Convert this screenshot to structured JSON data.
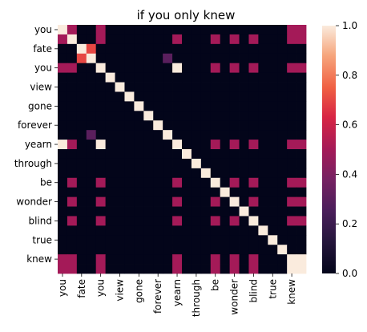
{
  "chart_data": {
    "type": "heatmap",
    "title": "if you only knew",
    "rows": [
      "you",
      "you",
      "fate",
      "fate",
      "you",
      "you",
      "view",
      "view",
      "gone",
      "gone",
      "forever",
      "forever",
      "yearn",
      "yearn",
      "through",
      "through",
      "be",
      "be",
      "wonder",
      "wonder",
      "blind",
      "blind",
      "true",
      "true",
      "knew",
      "knew"
    ],
    "columns": [
      "you",
      "you",
      "fate",
      "fate",
      "you",
      "you",
      "view",
      "view",
      "gone",
      "gone",
      "forever",
      "forever",
      "yearn",
      "yearn",
      "through",
      "through",
      "be",
      "be",
      "wonder",
      "wonder",
      "blind",
      "blind",
      "true",
      "true",
      "knew",
      "knew"
    ],
    "y_tick_labels": [
      "you",
      "fate",
      "you",
      "view",
      "gone",
      "forever",
      "yearn",
      "through",
      "be",
      "wonder",
      "blind",
      "true",
      "knew"
    ],
    "x_tick_labels": [
      "you",
      "fate",
      "you",
      "view",
      "gone",
      "forever",
      "yearn",
      "through",
      "be",
      "wonder",
      "blind",
      "true",
      "knew"
    ],
    "colorbar": {
      "vmin": 0.0,
      "vmax": 1.0,
      "ticks": [
        "0.0",
        "0.2",
        "0.4",
        "0.6",
        "0.8",
        "1.0"
      ]
    },
    "values": [
      [
        1,
        0.5,
        0,
        0,
        0.5,
        0,
        0,
        0,
        0,
        0,
        0,
        0,
        0,
        0,
        0,
        0,
        0,
        0,
        0,
        0,
        0,
        0,
        0,
        0,
        0.5,
        0.5
      ],
      [
        0.5,
        1,
        0,
        0,
        0.5,
        0,
        0,
        0,
        0,
        0,
        0,
        0,
        0.5,
        0,
        0,
        0,
        0.5,
        0,
        0.5,
        0,
        0.5,
        0,
        0,
        0,
        0.5,
        0.5
      ],
      [
        0,
        0,
        1,
        0.7,
        0,
        0,
        0,
        0,
        0,
        0,
        0,
        0,
        0,
        0,
        0,
        0,
        0,
        0,
        0,
        0,
        0,
        0,
        0,
        0,
        0,
        0
      ],
      [
        0,
        0,
        0.7,
        1,
        0,
        0,
        0,
        0,
        0,
        0,
        0,
        0.3,
        0,
        0,
        0,
        0,
        0,
        0,
        0,
        0,
        0,
        0,
        0,
        0,
        0,
        0
      ],
      [
        0.5,
        0.5,
        0,
        0,
        1,
        0,
        0,
        0,
        0,
        0,
        0,
        0,
        1,
        0,
        0,
        0,
        0.5,
        0,
        0.5,
        0,
        0.5,
        0,
        0,
        0,
        0.5,
        0.5
      ],
      [
        0,
        0,
        0,
        0,
        0,
        1,
        0,
        0,
        0,
        0,
        0,
        0,
        0,
        0,
        0,
        0,
        0,
        0,
        0,
        0,
        0,
        0,
        0,
        0,
        0,
        0
      ],
      [
        0,
        0,
        0,
        0,
        0,
        0,
        1,
        0,
        0,
        0,
        0,
        0,
        0,
        0,
        0,
        0,
        0,
        0,
        0,
        0,
        0,
        0,
        0,
        0,
        0,
        0
      ],
      [
        0,
        0,
        0,
        0,
        0,
        0,
        0,
        1,
        0,
        0,
        0,
        0,
        0,
        0,
        0,
        0,
        0,
        0,
        0,
        0,
        0,
        0,
        0,
        0,
        0,
        0
      ],
      [
        0,
        0,
        0,
        0,
        0,
        0,
        0,
        0,
        1,
        0,
        0,
        0,
        0,
        0,
        0,
        0,
        0,
        0,
        0,
        0,
        0,
        0,
        0,
        0,
        0,
        0
      ],
      [
        0,
        0,
        0,
        0,
        0,
        0,
        0,
        0,
        0,
        1,
        0,
        0,
        0,
        0,
        0,
        0,
        0,
        0,
        0,
        0,
        0,
        0,
        0,
        0,
        0,
        0
      ],
      [
        0,
        0,
        0,
        0,
        0,
        0,
        0,
        0,
        0,
        0,
        1,
        0,
        0,
        0,
        0,
        0,
        0,
        0,
        0,
        0,
        0,
        0,
        0,
        0,
        0,
        0
      ],
      [
        0,
        0,
        0,
        0.3,
        0,
        0,
        0,
        0,
        0,
        0,
        0,
        1,
        0,
        0,
        0,
        0,
        0,
        0,
        0,
        0,
        0,
        0,
        0,
        0,
        0,
        0
      ],
      [
        1,
        0.5,
        0,
        0,
        1,
        0,
        0,
        0,
        0,
        0,
        0,
        0,
        1,
        0,
        0,
        0,
        0.5,
        0,
        0.5,
        0,
        0.5,
        0,
        0,
        0,
        0.5,
        0.5
      ],
      [
        0,
        0,
        0,
        0,
        0,
        0,
        0,
        0,
        0,
        0,
        0,
        0,
        0,
        1,
        0,
        0,
        0,
        0,
        0,
        0,
        0,
        0,
        0,
        0,
        0,
        0
      ],
      [
        0,
        0,
        0,
        0,
        0,
        0,
        0,
        0,
        0,
        0,
        0,
        0,
        0,
        0,
        1,
        0,
        0,
        0,
        0,
        0,
        0,
        0,
        0,
        0,
        0,
        0
      ],
      [
        0,
        0,
        0,
        0,
        0,
        0,
        0,
        0,
        0,
        0,
        0,
        0,
        0,
        0,
        0,
        1,
        0,
        0,
        0,
        0,
        0,
        0,
        0,
        0,
        0,
        0
      ],
      [
        0,
        0.5,
        0,
        0,
        0.5,
        0,
        0,
        0,
        0,
        0,
        0,
        0,
        0.5,
        0,
        0,
        0,
        1,
        0,
        0.5,
        0,
        0.5,
        0,
        0,
        0,
        0.5,
        0.5
      ],
      [
        0,
        0,
        0,
        0,
        0,
        0,
        0,
        0,
        0,
        0,
        0,
        0,
        0,
        0,
        0,
        0,
        0,
        1,
        0,
        0,
        0,
        0,
        0,
        0,
        0,
        0
      ],
      [
        0,
        0.5,
        0,
        0,
        0.5,
        0,
        0,
        0,
        0,
        0,
        0,
        0,
        0.5,
        0,
        0,
        0,
        0.5,
        0,
        1,
        0,
        0.5,
        0,
        0,
        0,
        0.5,
        0.5
      ],
      [
        0,
        0,
        0,
        0,
        0,
        0,
        0,
        0,
        0,
        0,
        0,
        0,
        0,
        0,
        0,
        0,
        0,
        0,
        0,
        1,
        0,
        0,
        0,
        0,
        0,
        0
      ],
      [
        0,
        0.5,
        0,
        0,
        0.5,
        0,
        0,
        0,
        0,
        0,
        0,
        0,
        0.5,
        0,
        0,
        0,
        0.5,
        0,
        0.5,
        0,
        1,
        0,
        0,
        0,
        0.5,
        0.5
      ],
      [
        0,
        0,
        0,
        0,
        0,
        0,
        0,
        0,
        0,
        0,
        0,
        0,
        0,
        0,
        0,
        0,
        0,
        0,
        0,
        0,
        0,
        1,
        0,
        0,
        0,
        0
      ],
      [
        0,
        0,
        0,
        0,
        0,
        0,
        0,
        0,
        0,
        0,
        0,
        0,
        0,
        0,
        0,
        0,
        0,
        0,
        0,
        0,
        0,
        0,
        1,
        0,
        0,
        0
      ],
      [
        0,
        0,
        0,
        0,
        0,
        0,
        0,
        0,
        0,
        0,
        0,
        0,
        0,
        0,
        0,
        0,
        0,
        0,
        0,
        0,
        0,
        0,
        0,
        1,
        0,
        0
      ],
      [
        0.5,
        0.5,
        0,
        0,
        0.5,
        0,
        0,
        0,
        0,
        0,
        0,
        0,
        0.5,
        0,
        0,
        0,
        0.5,
        0,
        0.5,
        0,
        0.5,
        0,
        0,
        0,
        1,
        1
      ],
      [
        0.5,
        0.5,
        0,
        0,
        0.5,
        0,
        0,
        0,
        0,
        0,
        0,
        0,
        0.5,
        0,
        0,
        0,
        0.5,
        0,
        0.5,
        0,
        0.5,
        0,
        0,
        0,
        1,
        1
      ]
    ]
  }
}
